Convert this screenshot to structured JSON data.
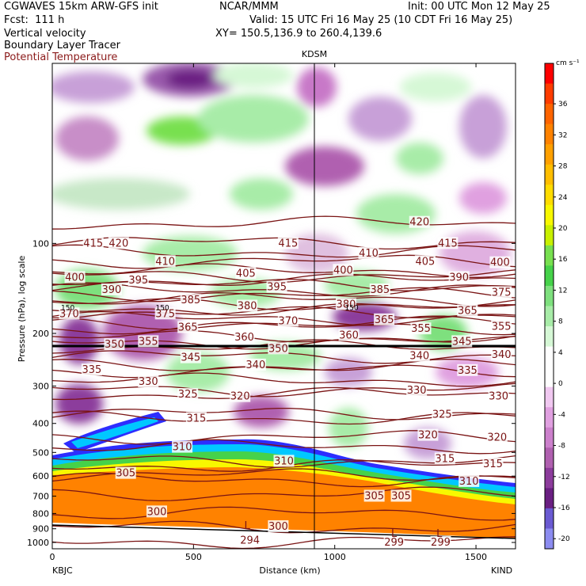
{
  "header": {
    "model": "CGWAVES 15km ARW-GFS init",
    "center": "NCAR/MMM",
    "init": "Init: 00 UTC Mon 12 May 25",
    "fcst": "Fcst:  111 h",
    "valid": "Valid: 15 UTC Fri 16 May 25 (10 CDT Fri 16 May 25)",
    "field1": "Vertical velocity",
    "xy": "XY= 150.5,136.9 to 260.4,139.6",
    "field2": "Boundary Layer Tracer",
    "field3": "Potential Temperature"
  },
  "colors": {
    "theta": "#7a1414",
    "tropopause": "#000000"
  },
  "chart_data": {
    "type": "heatmap",
    "title": "",
    "xlabel": "Distance (km)",
    "ylabel": "Pressure (hPa), log scale",
    "xlim": [
      0,
      1640
    ],
    "ylim": [
      1050,
      25
    ],
    "y_scale": "log",
    "station_top": "KDSM",
    "station_top_x": 940,
    "left_station": "KBJC",
    "right_station": "KIND",
    "x_ticks": [
      0,
      500,
      1000,
      1500
    ],
    "y_ticks": [
      100,
      200,
      300,
      400,
      500,
      600,
      700,
      800,
      900,
      1000
    ],
    "colorbar": {
      "unit": "cm s⁻¹",
      "labels": [
        36,
        32,
        28,
        24,
        20,
        16,
        12,
        8,
        4,
        0,
        -4,
        -8,
        -12,
        -16,
        -20
      ],
      "colors": [
        "#ff0000",
        "#ff3c00",
        "#ff6400",
        "#ff8200",
        "#ffa000",
        "#ffbe00",
        "#ffdc00",
        "#f8f800",
        "#c8f000",
        "#78e050",
        "#46d24a",
        "#7ee07e",
        "#a8eca8",
        "#d6f8d6",
        "#ffffff",
        "#ffffff",
        "#f0c8f0",
        "#e0a0e0",
        "#cc80cc",
        "#b060b0",
        "#8c3c9c",
        "#6a1f82",
        "#6a5ad2",
        "#8c8cf0"
      ]
    },
    "theta_labels": [
      {
        "t": "415",
        "x": 145,
        "p": 100
      },
      {
        "t": "420",
        "x": 235,
        "p": 100
      },
      {
        "t": "415",
        "x": 835,
        "p": 100
      },
      {
        "t": "420",
        "x": 1300,
        "p": 85
      },
      {
        "t": "415",
        "x": 1400,
        "p": 100
      },
      {
        "t": "410",
        "x": 400,
        "p": 115
      },
      {
        "t": "410",
        "x": 1120,
        "p": 108
      },
      {
        "t": "405",
        "x": 685,
        "p": 126
      },
      {
        "t": "405",
        "x": 1320,
        "p": 115
      },
      {
        "t": "400",
        "x": 80,
        "p": 130
      },
      {
        "t": "400",
        "x": 1030,
        "p": 123
      },
      {
        "t": "400",
        "x": 1585,
        "p": 116
      },
      {
        "t": "395",
        "x": 305,
        "p": 133
      },
      {
        "t": "395",
        "x": 795,
        "p": 140
      },
      {
        "t": "390",
        "x": 210,
        "p": 143
      },
      {
        "t": "390",
        "x": 1440,
        "p": 130
      },
      {
        "t": "385",
        "x": 490,
        "p": 155
      },
      {
        "t": "385",
        "x": 1160,
        "p": 143
      },
      {
        "t": "375",
        "x": 1590,
        "p": 146
      },
      {
        "t": "380",
        "x": 690,
        "p": 162
      },
      {
        "t": "380",
        "x": 1040,
        "p": 160
      },
      {
        "t": "375",
        "x": 400,
        "p": 172
      },
      {
        "t": "370",
        "x": 60,
        "p": 172
      },
      {
        "t": "370",
        "x": 835,
        "p": 182
      },
      {
        "t": "365",
        "x": 480,
        "p": 191
      },
      {
        "t": "365",
        "x": 1175,
        "p": 180
      },
      {
        "t": "365",
        "x": 1470,
        "p": 168
      },
      {
        "t": "360",
        "x": 680,
        "p": 206
      },
      {
        "t": "360",
        "x": 1050,
        "p": 203
      },
      {
        "t": "355",
        "x": 1305,
        "p": 193
      },
      {
        "t": "355",
        "x": 1590,
        "p": 190
      },
      {
        "t": "350",
        "x": 220,
        "p": 218
      },
      {
        "t": "350",
        "x": 800,
        "p": 225
      },
      {
        "t": "355",
        "x": 340,
        "p": 213
      },
      {
        "t": "345",
        "x": 490,
        "p": 241
      },
      {
        "t": "345",
        "x": 1450,
        "p": 213
      },
      {
        "t": "340",
        "x": 720,
        "p": 255
      },
      {
        "t": "340",
        "x": 1300,
        "p": 238
      },
      {
        "t": "340",
        "x": 1590,
        "p": 236
      },
      {
        "t": "335",
        "x": 140,
        "p": 265
      },
      {
        "t": "335",
        "x": 1470,
        "p": 266
      },
      {
        "t": "330",
        "x": 340,
        "p": 290
      },
      {
        "t": "330",
        "x": 1290,
        "p": 310
      },
      {
        "t": "330",
        "x": 1580,
        "p": 325
      },
      {
        "t": "325",
        "x": 480,
        "p": 320
      },
      {
        "t": "325",
        "x": 1380,
        "p": 373
      },
      {
        "t": "320",
        "x": 665,
        "p": 325
      },
      {
        "t": "320",
        "x": 1330,
        "p": 438
      },
      {
        "t": "320",
        "x": 1575,
        "p": 446
      },
      {
        "t": "315",
        "x": 510,
        "p": 385
      },
      {
        "t": "315",
        "x": 1390,
        "p": 525
      },
      {
        "t": "315",
        "x": 1560,
        "p": 547
      },
      {
        "t": "310",
        "x": 460,
        "p": 480
      },
      {
        "t": "310",
        "x": 820,
        "p": 535
      },
      {
        "t": "310",
        "x": 1475,
        "p": 625
      },
      {
        "t": "305",
        "x": 260,
        "p": 587
      },
      {
        "t": "305",
        "x": 1140,
        "p": 700
      },
      {
        "t": "305",
        "x": 1235,
        "p": 700
      },
      {
        "t": "300",
        "x": 370,
        "p": 790
      },
      {
        "t": "300",
        "x": 800,
        "p": 885
      },
      {
        "t": "299",
        "x": 1210,
        "p": 1000
      },
      {
        "t": "299",
        "x": 1375,
        "p": 1000
      },
      {
        "t": "294",
        "x": 700,
        "p": 985
      }
    ],
    "markers_L": [
      {
        "t": "L",
        "x": 690,
        "p": 880
      },
      {
        "t": "L",
        "x": 1210,
        "p": 935
      },
      {
        "t": "L",
        "x": 1370,
        "p": 935
      }
    ],
    "tropopause_labels": [
      {
        "t": "150",
        "x": 55,
        "p": 163
      },
      {
        "t": "150",
        "x": 390,
        "p": 163
      },
      {
        "t": "150",
        "x": 1060,
        "p": 163
      }
    ]
  }
}
